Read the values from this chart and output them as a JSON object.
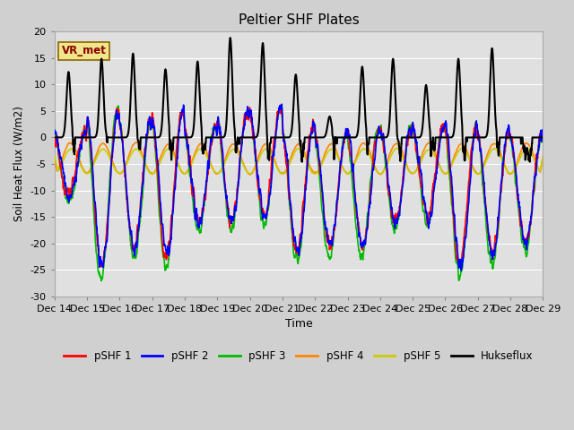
{
  "title": "Peltier SHF Plates",
  "xlabel": "Time",
  "ylabel": "Soil Heat Flux (W/m2)",
  "ylim": [
    -30,
    20
  ],
  "fig_bg_color": "#d0d0d0",
  "plot_bg_color": "#e0e0e0",
  "annotation_text": "VR_met",
  "annotation_bg": "#f0e68c",
  "annotation_fg": "#8b0000",
  "series": [
    {
      "label": "pSHF 1",
      "color": "#ff0000"
    },
    {
      "label": "pSHF 2",
      "color": "#0000ff"
    },
    {
      "label": "pSHF 3",
      "color": "#00bb00"
    },
    {
      "label": "pSHF 4",
      "color": "#ff8800"
    },
    {
      "label": "pSHF 5",
      "color": "#cccc00"
    },
    {
      "label": "Hukseflux",
      "color": "#000000"
    }
  ],
  "xtick_labels": [
    "Dec 14",
    "Dec 15",
    "Dec 16",
    "Dec 17",
    "Dec 18",
    "Dec 19",
    "Dec 20",
    "Dec 21",
    "Dec 22",
    "Dec 23",
    "Dec 24",
    "Dec 25",
    "Dec 26",
    "Dec 27",
    "Dec 28",
    "Dec 29"
  ],
  "ytick_vals": [
    -30,
    -25,
    -20,
    -15,
    -10,
    -5,
    0,
    5,
    10,
    15,
    20
  ]
}
